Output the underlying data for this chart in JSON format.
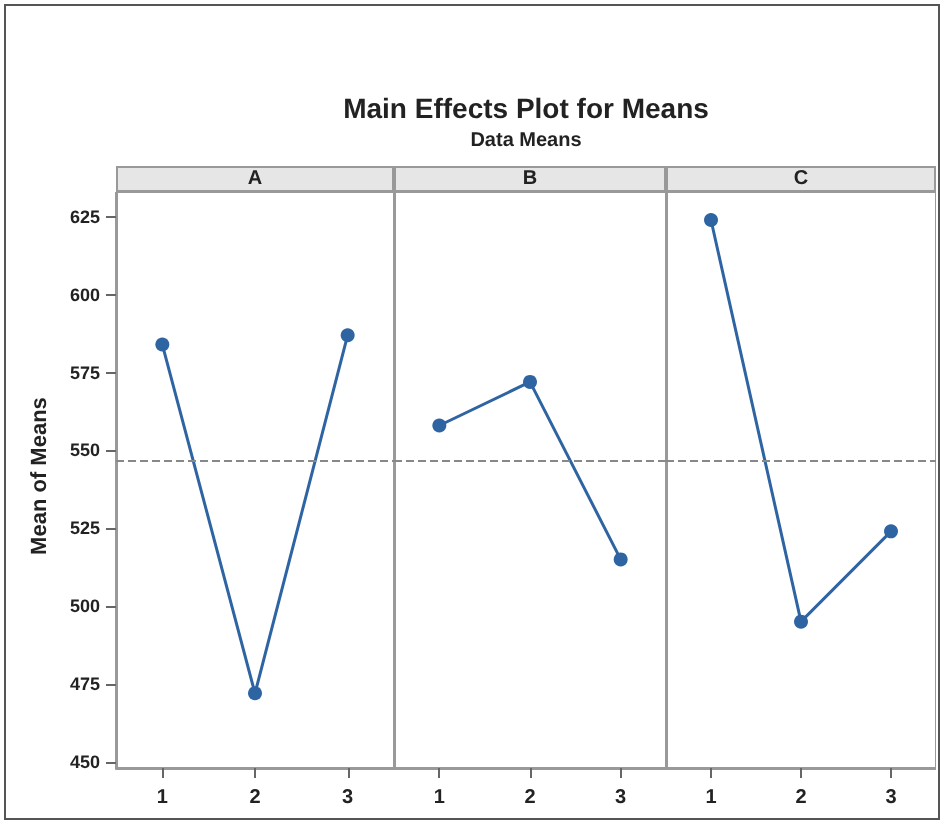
{
  "chart_data": [
    {
      "type": "line",
      "xlabel": "A",
      "ylabel": "Mean of Means",
      "categories": [
        "1",
        "2",
        "3"
      ],
      "series": [
        {
          "color": "#2f64a3",
          "values": [
            584,
            472,
            587
          ]
        }
      ],
      "ylim": [
        448,
        633
      ],
      "yticks": [
        450,
        475,
        500,
        525,
        550,
        575,
        600,
        625
      ],
      "grid": false,
      "marker": "circle",
      "line_style": "solid",
      "ref_lines": [
        {
          "axis": "y",
          "value": 547,
          "color": "#888888",
          "line_style": "dashed"
        }
      ]
    },
    {
      "type": "line",
      "title": "Main Effects Plot for Means",
      "subtitle": "Data Means",
      "xlabel": "B",
      "categories": [
        "1",
        "2",
        "3"
      ],
      "series": [
        {
          "color": "#2f64a3",
          "values": [
            558,
            572,
            515
          ]
        }
      ],
      "ylim": [
        448,
        633
      ],
      "tick_labels": "x",
      "grid": false,
      "marker": "circle",
      "line_style": "solid",
      "ref_lines": [
        {
          "axis": "y",
          "value": 547,
          "color": "#888888",
          "line_style": "dashed"
        }
      ]
    },
    {
      "type": "line",
      "xlabel": "C",
      "categories": [
        "1",
        "2",
        "3"
      ],
      "series": [
        {
          "color": "#2f64a3",
          "values": [
            624,
            495,
            524
          ]
        }
      ],
      "ylim": [
        448,
        633
      ],
      "tick_labels": "x",
      "grid": false,
      "marker": "circle",
      "line_style": "solid",
      "ref_lines": [
        {
          "axis": "y",
          "value": 547,
          "color": "#888888",
          "line_style": "dashed"
        }
      ]
    }
  ]
}
